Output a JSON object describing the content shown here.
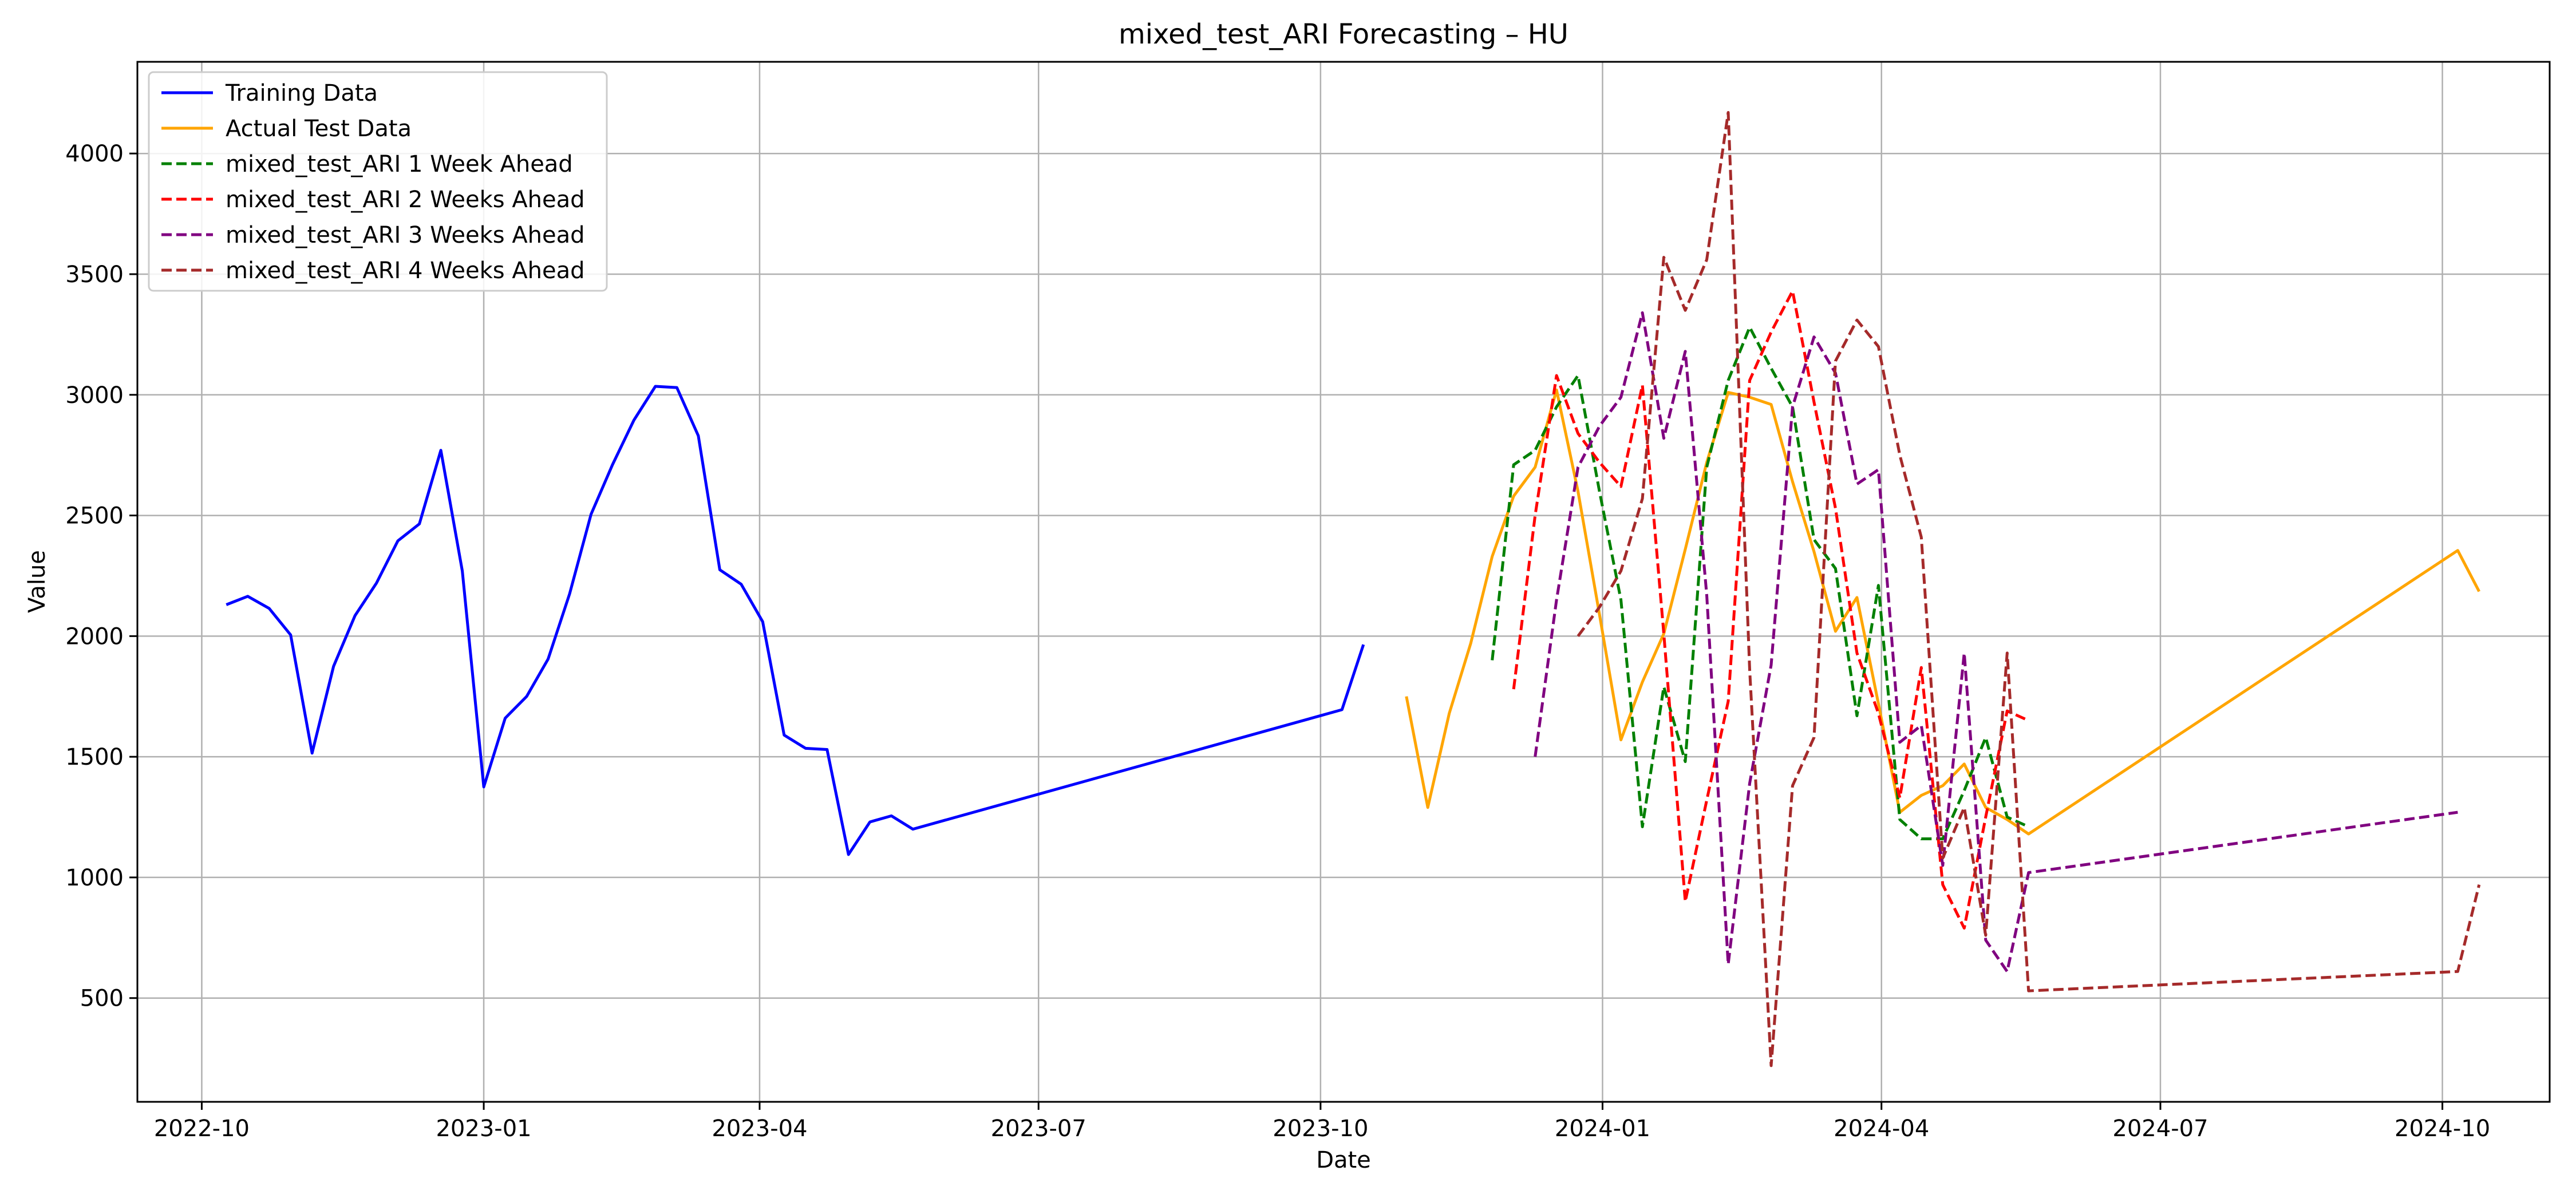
{
  "chart_data": {
    "type": "line",
    "title": "mixed_test_ARI Forecasting – HU",
    "xlabel": "Date",
    "ylabel": "Value",
    "grid": true,
    "legend_position": "top-left",
    "xlim": [
      "2022-09-10",
      "2024-11-05"
    ],
    "ylim": [
      70,
      4380
    ],
    "x_ticks": [
      "2022-10",
      "2023-01",
      "2023-04",
      "2023-07",
      "2023-10",
      "2024-01",
      "2024-04",
      "2024-07",
      "2024-10"
    ],
    "y_ticks": [
      500,
      1000,
      1500,
      2000,
      2500,
      3000,
      3500,
      4000
    ],
    "series": [
      {
        "name": "Training Data",
        "color": "#0000ff",
        "dash": "solid",
        "x": [
          "2022-10-09",
          "2022-10-16",
          "2022-10-23",
          "2022-10-30",
          "2022-11-06",
          "2022-11-13",
          "2022-11-20",
          "2022-11-27",
          "2022-12-04",
          "2022-12-11",
          "2022-12-18",
          "2022-12-25",
          "2023-01-01",
          "2023-01-08",
          "2023-01-15",
          "2023-01-22",
          "2023-01-29",
          "2023-02-05",
          "2023-02-12",
          "2023-02-19",
          "2023-02-26",
          "2023-03-05",
          "2023-03-12",
          "2023-03-19",
          "2023-03-26",
          "2023-04-02",
          "2023-04-09",
          "2023-04-16",
          "2023-04-23",
          "2023-04-30",
          "2023-05-07",
          "2023-05-14",
          "2023-05-21",
          "2023-10-08",
          "2023-10-15"
        ],
        "y": [
          2130,
          2165,
          2115,
          2005,
          1515,
          1875,
          2085,
          2220,
          2395,
          2465,
          2770,
          2270,
          1375,
          1660,
          1750,
          1905,
          2175,
          2505,
          2710,
          2895,
          3035,
          3030,
          2830,
          2275,
          2215,
          2060,
          1590,
          1535,
          1530,
          1095,
          1230,
          1255,
          1200,
          1695,
          1965
        ]
      },
      {
        "name": "Actual Test Data",
        "color": "#ffa500",
        "dash": "solid",
        "x": [
          "2023-10-29",
          "2023-11-05",
          "2023-11-12",
          "2023-11-19",
          "2023-11-26",
          "2023-12-03",
          "2023-12-10",
          "2023-12-17",
          "2023-12-24",
          "2023-12-31",
          "2024-01-07",
          "2024-01-14",
          "2024-01-21",
          "2024-01-28",
          "2024-02-04",
          "2024-02-11",
          "2024-02-18",
          "2024-02-25",
          "2024-03-03",
          "2024-03-10",
          "2024-03-17",
          "2024-03-24",
          "2024-03-31",
          "2024-04-07",
          "2024-04-14",
          "2024-04-21",
          "2024-04-28",
          "2024-05-05",
          "2024-05-12",
          "2024-05-19",
          "2024-10-06",
          "2024-10-13"
        ],
        "y": [
          1750,
          1290,
          1680,
          1970,
          2330,
          2580,
          2700,
          3020,
          2600,
          2090,
          1570,
          1810,
          2010,
          2360,
          2720,
          3010,
          2990,
          2960,
          2640,
          2350,
          2020,
          2160,
          1720,
          1270,
          1340,
          1380,
          1470,
          1290,
          1240,
          1180,
          2355,
          2185
        ]
      },
      {
        "name": "mixed_test_ARI 1 Week Ahead",
        "color": "#008000",
        "dash": "dashed",
        "x": [
          "2023-11-26",
          "2023-12-03",
          "2023-12-10",
          "2023-12-17",
          "2023-12-24",
          "2023-12-31",
          "2024-01-07",
          "2024-01-14",
          "2024-01-21",
          "2024-01-28",
          "2024-02-04",
          "2024-02-11",
          "2024-02-18",
          "2024-02-25",
          "2024-03-03",
          "2024-03-10",
          "2024-03-17",
          "2024-03-24",
          "2024-03-31",
          "2024-04-07",
          "2024-04-14",
          "2024-04-21",
          "2024-04-28",
          "2024-05-05",
          "2024-05-12",
          "2024-05-19"
        ],
        "y": [
          1900,
          2710,
          2770,
          2950,
          3080,
          2600,
          2150,
          1210,
          1790,
          1480,
          2700,
          3060,
          3280,
          3110,
          2950,
          2400,
          2280,
          1670,
          2210,
          1240,
          1160,
          1160,
          1360,
          1580,
          1250,
          1210
        ]
      },
      {
        "name": "mixed_test_ARI 2 Weeks Ahead",
        "color": "#ff0000",
        "dash": "dashed",
        "x": [
          "2023-12-03",
          "2023-12-10",
          "2023-12-17",
          "2023-12-24",
          "2023-12-31",
          "2024-01-07",
          "2024-01-14",
          "2024-01-21",
          "2024-01-28",
          "2024-02-04",
          "2024-02-11",
          "2024-02-18",
          "2024-02-25",
          "2024-03-03",
          "2024-03-10",
          "2024-03-17",
          "2024-03-24",
          "2024-03-31",
          "2024-04-07",
          "2024-04-14",
          "2024-04-21",
          "2024-04-28",
          "2024-05-05",
          "2024-05-12",
          "2024-05-19"
        ],
        "y": [
          1780,
          2500,
          3080,
          2840,
          2720,
          2620,
          3040,
          2010,
          900,
          1320,
          1730,
          3060,
          3260,
          3430,
          2970,
          2530,
          1930,
          1680,
          1330,
          1870,
          970,
          790,
          1250,
          1690,
          1650
        ]
      },
      {
        "name": "mixed_test_ARI 3 Weeks Ahead",
        "color": "#800080",
        "dash": "dashed",
        "x": [
          "2023-12-10",
          "2023-12-17",
          "2023-12-24",
          "2023-12-31",
          "2024-01-07",
          "2024-01-14",
          "2024-01-21",
          "2024-01-28",
          "2024-02-04",
          "2024-02-11",
          "2024-02-18",
          "2024-02-25",
          "2024-03-03",
          "2024-03-10",
          "2024-03-17",
          "2024-03-24",
          "2024-03-31",
          "2024-04-07",
          "2024-04-14",
          "2024-04-21",
          "2024-04-28",
          "2024-05-05",
          "2024-05-12",
          "2024-05-19",
          "2024-10-06"
        ],
        "y": [
          1500,
          2150,
          2700,
          2870,
          2990,
          3340,
          2820,
          3180,
          2170,
          640,
          1390,
          1880,
          2950,
          3240,
          3090,
          2630,
          2690,
          1560,
          1630,
          1050,
          1930,
          740,
          610,
          1020,
          1270
        ]
      },
      {
        "name": "mixed_test_ARI 4 Weeks Ahead",
        "color": "#a52a2a",
        "dash": "dashed",
        "x": [
          "2023-12-24",
          "2023-12-31",
          "2024-01-07",
          "2024-01-14",
          "2024-01-21",
          "2024-01-28",
          "2024-02-04",
          "2024-02-11",
          "2024-02-18",
          "2024-02-25",
          "2024-03-03",
          "2024-03-10",
          "2024-03-17",
          "2024-03-24",
          "2024-03-31",
          "2024-04-07",
          "2024-04-14",
          "2024-04-21",
          "2024-04-28",
          "2024-05-05",
          "2024-05-12",
          "2024-05-19",
          "2024-10-06",
          "2024-10-13"
        ],
        "y": [
          2000,
          2120,
          2270,
          2570,
          3570,
          3350,
          3560,
          4170,
          1860,
          220,
          1380,
          1580,
          3140,
          3310,
          3200,
          2750,
          2410,
          1080,
          1290,
          760,
          1930,
          530,
          610,
          970
        ]
      }
    ]
  }
}
